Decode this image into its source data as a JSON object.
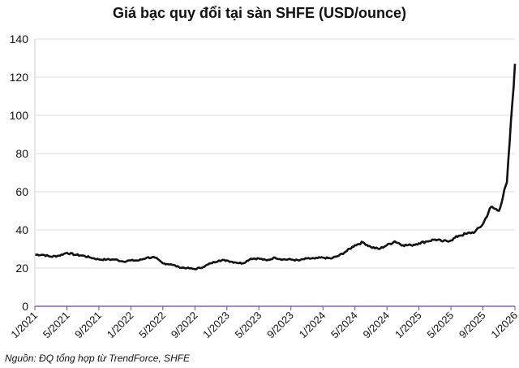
{
  "chart_data": {
    "type": "line",
    "title": "Giá bạc quy đổi tại sàn SHFE (USD/ounce)",
    "source": "Nguồn: ĐQ tổng hợp từ TrendForce, SHFE",
    "xlabel": "",
    "ylabel": "",
    "ylim": [
      0,
      140
    ],
    "yticks": [
      "0",
      "20",
      "40",
      "60",
      "80",
      "100",
      "120",
      "140"
    ],
    "xticks": [
      "1/2021",
      "5/2021",
      "9/2021",
      "1/2022",
      "5/2022",
      "9/2022",
      "1/2023",
      "5/2023",
      "9/2023",
      "1/2024",
      "5/2024",
      "9/2024",
      "1/2025",
      "5/2025",
      "9/2025",
      "1/2026"
    ],
    "grid": true,
    "line_color": "#111111",
    "axis_color": "#7b3fa0",
    "series": [
      {
        "x": [
          "2021-01",
          "2021-02",
          "2021-03",
          "2021-04",
          "2021-05",
          "2021-06",
          "2021-07",
          "2021-08",
          "2021-09",
          "2021-10",
          "2021-11",
          "2021-12",
          "2022-01",
          "2022-02",
          "2022-03",
          "2022-04",
          "2022-05",
          "2022-06",
          "2022-07",
          "2022-08",
          "2022-09",
          "2022-10",
          "2022-11",
          "2022-12",
          "2023-01",
          "2023-02",
          "2023-03",
          "2023-04",
          "2023-05",
          "2023-06",
          "2023-07",
          "2023-08",
          "2023-09",
          "2023-10",
          "2023-11",
          "2023-12",
          "2024-01",
          "2024-02",
          "2024-03",
          "2024-04",
          "2024-05",
          "2024-06",
          "2024-07",
          "2024-08",
          "2024-09",
          "2024-10",
          "2024-11",
          "2024-12",
          "2025-01",
          "2025-02",
          "2025-03",
          "2025-04",
          "2025-05",
          "2025-06",
          "2025-07",
          "2025-08",
          "2025-09",
          "2025-10",
          "2025-11",
          "2025-12",
          "2026-01"
        ],
        "values": [
          27,
          27,
          26,
          26.5,
          28,
          27,
          26.5,
          25.5,
          24.5,
          24.5,
          24.5,
          23.5,
          24,
          24,
          25.5,
          25.5,
          22.5,
          22,
          20.5,
          20,
          19.5,
          20.5,
          22.5,
          24,
          24,
          23,
          22.5,
          25,
          25,
          24,
          25.5,
          24.5,
          24.5,
          24,
          25,
          25,
          25.5,
          25,
          26.5,
          29,
          32,
          33.5,
          31,
          30,
          32,
          34,
          32,
          32,
          33,
          34,
          35,
          34,
          34.5,
          37,
          38,
          39,
          43,
          52,
          50,
          65,
          127
        ]
      }
    ]
  }
}
